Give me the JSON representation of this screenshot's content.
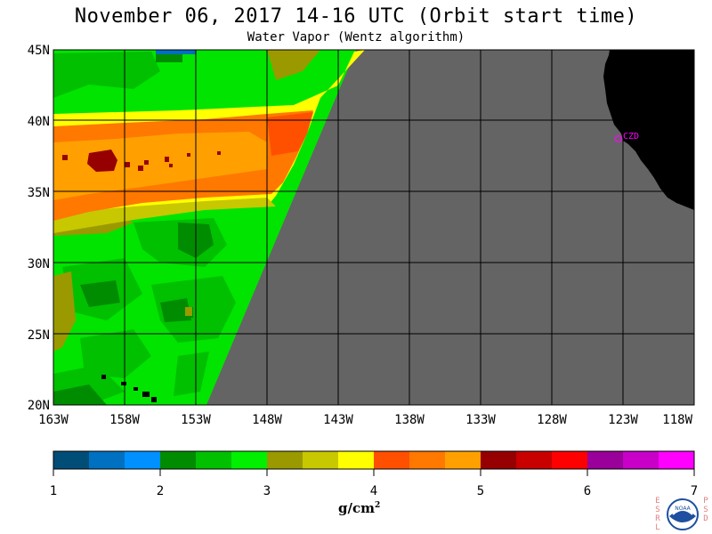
{
  "title": "November 06, 2017  14-16 UTC  (Orbit start time)",
  "subtitle": "Water Vapor (Wentz algorithm)",
  "map": {
    "lat_labels": [
      "45N",
      "40N",
      "35N",
      "30N",
      "25N",
      "20N"
    ],
    "lon_labels": [
      "163W",
      "158W",
      "153W",
      "148W",
      "143W",
      "138W",
      "133W",
      "128W",
      "123W",
      "118W"
    ],
    "station_label": "CZD",
    "no_data_color": "#646464",
    "land_color": "#000000",
    "station_color": "#ff00ff"
  },
  "colorbar": {
    "tick_labels": [
      "1",
      "2",
      "3",
      "4",
      "5",
      "6",
      "7"
    ],
    "colors": [
      "#004e78",
      "#0070c0",
      "#0090ff",
      "#008c00",
      "#00c000",
      "#00f000",
      "#9a9a00",
      "#c8c800",
      "#ffff00",
      "#ff5000",
      "#ff7800",
      "#ffa000",
      "#960000",
      "#c80000",
      "#ff0000",
      "#9a009a",
      "#c800c8",
      "#ff00ff"
    ],
    "units_main": "g/cm",
    "units_sup": "2"
  },
  "logo": {
    "left_letters": [
      "E",
      "S",
      "R",
      "L"
    ],
    "right_letters": [
      "P",
      "S",
      "D"
    ],
    "logo_text": "NOAA"
  }
}
